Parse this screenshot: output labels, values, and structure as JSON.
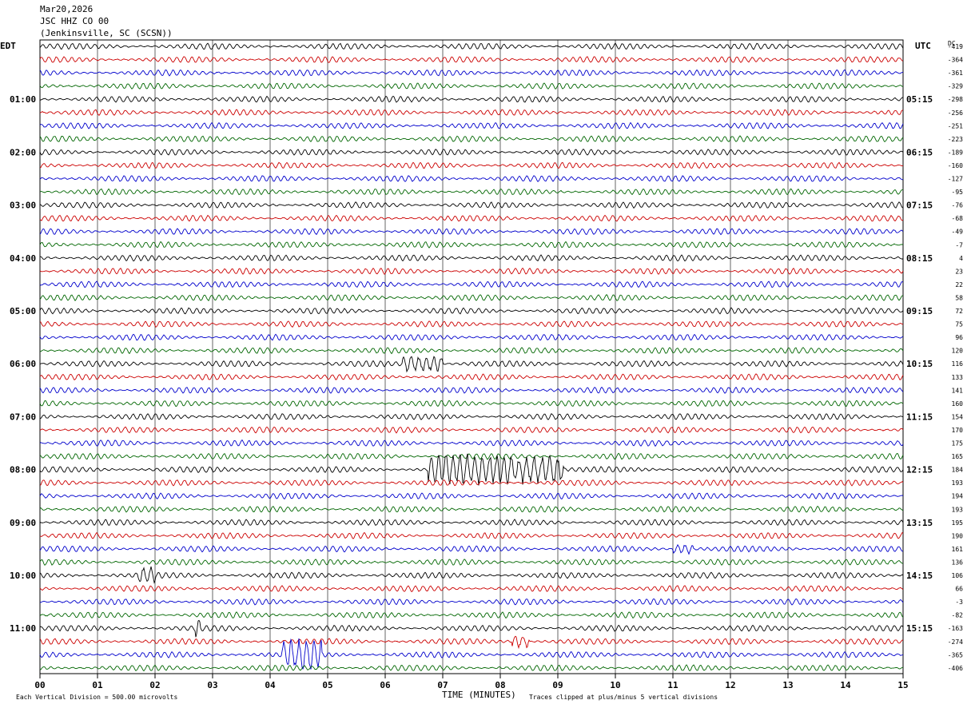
{
  "header": {
    "date": "Mar20,2026",
    "station": "JSC HHZ CO 00",
    "location": "(Jenkinsville, SC (SCSN))"
  },
  "left_axis_label": "EDT",
  "right_axis_label": "UTC",
  "dc_label": "DC",
  "footer": {
    "vertical_division": "Each Vertical Division =  500.00 microvolts",
    "xlabel": "TIME (MINUTES)",
    "clip_note": "Traces clipped at plus/minus 5 vertical divisions"
  },
  "colors": {
    "trace_cycle": [
      "#000000",
      "#cc0000",
      "#0000cc",
      "#006600"
    ],
    "grid": "#000000"
  },
  "chart_data": {
    "type": "line",
    "title": "JSC HHZ CO 00",
    "xlabel": "TIME (MINUTES)",
    "xlim": [
      0,
      15
    ],
    "x_ticks": [
      "00",
      "01",
      "02",
      "03",
      "04",
      "05",
      "06",
      "07",
      "08",
      "09",
      "10",
      "11",
      "12",
      "13",
      "14",
      "15"
    ],
    "trace_count": 48,
    "minutes_per_trace": 15,
    "edt_hour_labels": [
      {
        "row": 4,
        "label": "01:00"
      },
      {
        "row": 8,
        "label": "02:00"
      },
      {
        "row": 12,
        "label": "03:00"
      },
      {
        "row": 16,
        "label": "04:00"
      },
      {
        "row": 20,
        "label": "05:00"
      },
      {
        "row": 24,
        "label": "06:00"
      },
      {
        "row": 28,
        "label": "07:00"
      },
      {
        "row": 32,
        "label": "08:00"
      },
      {
        "row": 36,
        "label": "09:00"
      },
      {
        "row": 40,
        "label": "10:00"
      },
      {
        "row": 44,
        "label": "11:00"
      }
    ],
    "utc_hour_labels": [
      {
        "row": 4,
        "label": "05:15"
      },
      {
        "row": 8,
        "label": "06:15"
      },
      {
        "row": 12,
        "label": "07:15"
      },
      {
        "row": 16,
        "label": "08:15"
      },
      {
        "row": 20,
        "label": "09:15"
      },
      {
        "row": 24,
        "label": "10:15"
      },
      {
        "row": 28,
        "label": "11:15"
      },
      {
        "row": 32,
        "label": "12:15"
      },
      {
        "row": 36,
        "label": "13:15"
      },
      {
        "row": 40,
        "label": "14:15"
      },
      {
        "row": 44,
        "label": "15:15"
      }
    ],
    "dc_offsets": [
      "-419",
      "-364",
      "-361",
      "-329",
      "-298",
      "-256",
      "-251",
      "-223",
      "-189",
      "-160",
      "-127",
      "-95",
      "-76",
      "-68",
      "-49",
      "-7",
      "4",
      "23",
      "22",
      "58",
      "72",
      "75",
      "96",
      "120",
      "116",
      "133",
      "141",
      "160",
      "154",
      "170",
      "175",
      "165",
      "184",
      "193",
      "194",
      "193",
      "195",
      "190",
      "161",
      "136",
      "106",
      "66",
      "-3",
      "-82",
      "-163",
      "-274",
      "-365",
      "-406"
    ],
    "events": [
      {
        "row": 24,
        "start_min": 6.3,
        "end_min": 7.0,
        "amp": 0.5
      },
      {
        "row": 32,
        "start_min": 6.75,
        "end_min": 9.1,
        "amp": 0.9
      },
      {
        "row": 38,
        "start_min": 11.0,
        "end_min": 11.35,
        "amp": 0.3
      },
      {
        "row": 40,
        "start_min": 1.7,
        "end_min": 2.0,
        "amp": 0.4
      },
      {
        "row": 44,
        "start_min": 2.7,
        "end_min": 2.8,
        "amp": 0.5
      },
      {
        "row": 45,
        "start_min": 8.2,
        "end_min": 8.5,
        "amp": 0.4
      },
      {
        "row": 46,
        "start_min": 4.2,
        "end_min": 4.9,
        "amp": 0.9
      }
    ]
  }
}
